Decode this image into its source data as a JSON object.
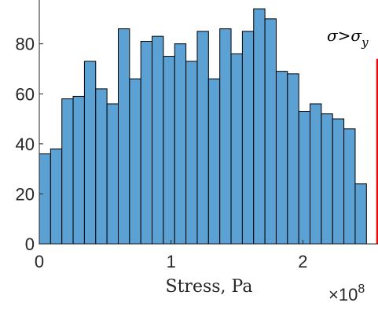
{
  "chart_data": {
    "type": "bar",
    "xlabel": "Stress, Pa",
    "x_exponent_label": "×10",
    "x_exponent_power": "8",
    "x_multiplier": 100000000,
    "xlim": [
      0,
      2.57
    ],
    "ylim": [
      0,
      95
    ],
    "x_ticks": [
      0,
      1,
      2
    ],
    "y_ticks": [
      0,
      20,
      40,
      60,
      80
    ],
    "bar_color": "#5ca1d4",
    "bar_edge_color": "#000000",
    "bin_width": 0.0856,
    "bin_start": 0,
    "values": [
      36,
      38,
      58,
      59,
      73,
      62,
      56,
      86,
      66,
      81,
      83,
      75,
      80,
      73,
      85,
      66,
      86,
      76,
      85,
      94,
      90,
      69,
      68,
      53,
      56,
      52,
      50,
      46,
      24
    ],
    "overflow_bar": {
      "x_start": 2.557,
      "x_end": 2.57,
      "value": 74,
      "color": "#ff0000"
    },
    "annotation": {
      "symbol": "σ",
      "relation": ">",
      "subscript": "y"
    }
  }
}
